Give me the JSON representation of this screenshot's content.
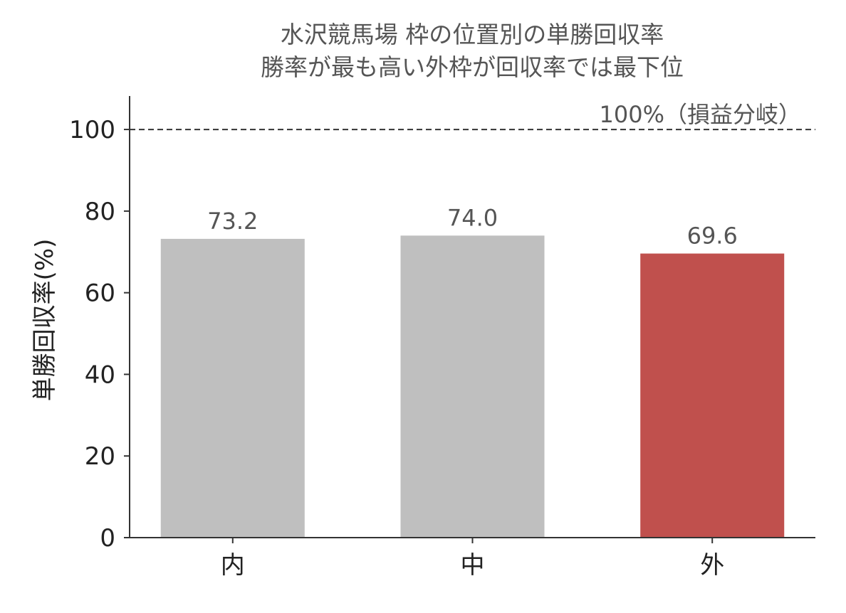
{
  "chart_data": {
    "type": "bar",
    "title": [
      "水沢競馬場 枠の位置別の単勝回収率",
      "勝率が最も高い外枠が回収率では最下位"
    ],
    "y_label": "単勝回収率(%)",
    "categories": [
      "内",
      "中",
      "外"
    ],
    "values": [
      73.2,
      74.0,
      69.6
    ],
    "value_labels": [
      "73.2",
      "74.0",
      "69.6"
    ],
    "colors": [
      "#bfbfbf",
      "#bfbfbf",
      "#c0504d"
    ],
    "ylim": [
      0,
      108.2
    ],
    "yticks": [
      0,
      20,
      40,
      60,
      80,
      100
    ],
    "reference_line": {
      "value": 100,
      "label": "100%（損益分岐）"
    }
  }
}
